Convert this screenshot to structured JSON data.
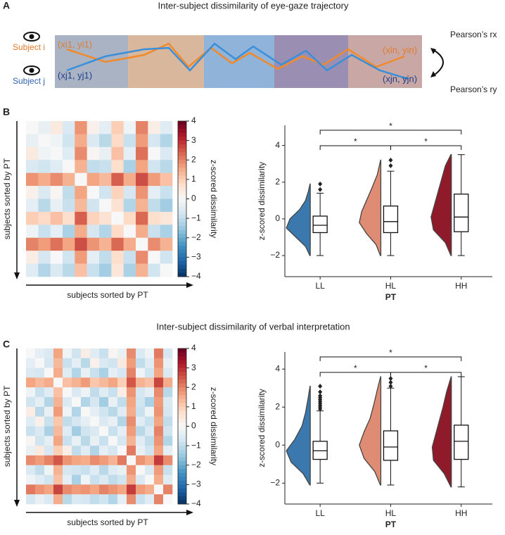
{
  "panels": [
    {
      "letter": "A",
      "title": "Inter-subject dissimilarity of eye-gaze trajectory"
    },
    {
      "letter": "B"
    },
    {
      "letter": "C",
      "title": "Inter-subject dissimilarity of verbal interpretation"
    }
  ],
  "panel_a": {
    "subject_i": "Subject i",
    "subject_j": "Subject j",
    "start_i": "(xi1, yi1)",
    "start_j": "(xj1, yj1)",
    "end_i": "(xin, yin)",
    "end_j": "(xjn, yjn)",
    "pearson_x": "Pearson’s rx",
    "pearson_y": "Pearson’s ry"
  },
  "chart_data": [
    {
      "type": "heatmap",
      "xlabel": "subjects sorted by PT",
      "ylabel": "subjects sorted by PT",
      "colorbar_label": "z-scored dissimilarity",
      "colormap": "RdBu_r",
      "clim": [
        -4,
        4
      ],
      "symmetric": true,
      "cticks": [
        4,
        3,
        2,
        1,
        0,
        {
          "value": -1,
          "label": "−1"
        },
        {
          "value": -2,
          "label": "−2"
        },
        {
          "value": -3,
          "label": "−3"
        },
        {
          "value": -4,
          "label": "−4"
        }
      ],
      "matrix": [
        [
          0.0,
          -0.3,
          0.4,
          -0.6,
          1.8,
          0.2,
          -0.4,
          1.0,
          -0.2,
          2.0,
          0.3,
          -0.5
        ],
        [
          0.0,
          -0.2,
          -0.8,
          1.5,
          -0.6,
          -1.1,
          0.8,
          -0.9,
          1.7,
          -0.7,
          -1.2
        ],
        [
          0.0,
          -0.5,
          1.9,
          0.1,
          -0.3,
          1.2,
          -0.4,
          2.2,
          0.0,
          -0.6
        ],
        [
          0.0,
          1.4,
          -1.0,
          -0.9,
          0.7,
          -1.3,
          1.6,
          -0.8,
          -1.1
        ],
        [
          0.0,
          1.6,
          1.3,
          2.4,
          1.5,
          2.6,
          1.7,
          1.2
        ],
        [
          0.0,
          -0.8,
          0.9,
          -0.7,
          1.8,
          -0.4,
          -0.9
        ],
        [
          0.0,
          0.6,
          -1.2,
          1.4,
          -1.0,
          -1.4
        ],
        [
          0.0,
          0.8,
          2.3,
          0.7,
          0.5
        ],
        [
          0.0,
          1.5,
          -0.9,
          -1.3
        ],
        [
          0.0,
          1.9,
          1.4
        ],
        [
          0.0,
          -0.8
        ],
        [
          0.0
        ]
      ]
    },
    {
      "type": "violin",
      "ylabel": "z-scored dissimilarity",
      "xlabel": "PT",
      "categories": [
        "LL",
        "HL",
        "HH"
      ],
      "colors": [
        "#3a78ae",
        "#df8c74",
        "#8f1b2a"
      ],
      "ylim": [
        -3.15,
        5.1
      ],
      "yticks": [
        {
          "value": -2,
          "label": "−2"
        },
        0,
        2,
        4
      ],
      "boxes": [
        {
          "whislo": -2.0,
          "q1": -0.75,
          "med": -0.35,
          "q3": 0.15,
          "whishi": 1.4,
          "fliers": [
            1.6,
            1.9
          ]
        },
        {
          "whislo": -2.0,
          "q1": -0.75,
          "med": -0.15,
          "q3": 0.7,
          "whishi": 2.6,
          "fliers": [
            2.9,
            3.2
          ]
        },
        {
          "whislo": -2.0,
          "q1": -0.7,
          "med": 0.1,
          "q3": 1.35,
          "whishi": 3.5,
          "fliers": []
        }
      ],
      "violins": [
        {
          "y": [
            -2.0,
            -1.5,
            -1.0,
            -0.5,
            0.0,
            0.5,
            1.0,
            1.5,
            1.9
          ],
          "density": [
            0.02,
            0.2,
            0.6,
            1.0,
            0.85,
            0.45,
            0.2,
            0.08,
            0.01
          ]
        },
        {
          "y": [
            -2.0,
            -1.4,
            -0.8,
            -0.2,
            0.4,
            1.0,
            1.6,
            2.4,
            3.2
          ],
          "density": [
            0.02,
            0.2,
            0.6,
            0.9,
            0.8,
            0.6,
            0.4,
            0.15,
            0.01
          ]
        },
        {
          "y": [
            -2.0,
            -1.3,
            -0.6,
            0.1,
            0.8,
            1.5,
            2.2,
            2.9,
            3.5
          ],
          "density": [
            0.02,
            0.25,
            0.75,
            0.85,
            0.7,
            0.55,
            0.4,
            0.25,
            0.02
          ]
        }
      ],
      "significance": [
        {
          "pair": [
            "LL",
            "HH"
          ],
          "label": "*"
        },
        {
          "pair": [
            "LL",
            "HL"
          ],
          "label": "*"
        },
        {
          "pair": [
            "HL",
            "HH"
          ],
          "label": "*"
        }
      ]
    },
    {
      "type": "heatmap",
      "xlabel": "subjects sorted by PT",
      "ylabel": "subjects sorted by PT",
      "colorbar_label": "z-scored dissimilarity",
      "colormap": "RdBu_r",
      "clim": [
        -4,
        4
      ],
      "symmetric": true,
      "cticks": [
        4,
        3,
        2,
        1,
        0,
        {
          "value": -1,
          "label": "−1"
        },
        {
          "value": -2,
          "label": "−2"
        },
        {
          "value": -3,
          "label": "−3"
        },
        {
          "value": -4,
          "label": "−4"
        }
      ],
      "matrix": [
        [
          0.0,
          -0.4,
          -0.6,
          1.6,
          -0.2,
          -0.8,
          0.3,
          -0.5,
          -0.9,
          0.1,
          -0.3,
          1.9,
          -0.6,
          -0.2,
          2.1,
          -0.7
        ],
        [
          0.0,
          -0.7,
          1.3,
          -0.9,
          -0.4,
          -1.1,
          0.2,
          -0.6,
          -0.8,
          0.4,
          1.7,
          -1.0,
          -0.5,
          1.8,
          -0.3
        ],
        [
          0.0,
          1.5,
          -0.5,
          -1.2,
          -0.3,
          -0.9,
          -1.3,
          -0.4,
          -0.7,
          2.0,
          -0.2,
          -0.8,
          1.6,
          -0.6
        ],
        [
          0.0,
          1.2,
          1.4,
          1.7,
          1.1,
          1.3,
          1.6,
          1.0,
          2.5,
          1.4,
          1.2,
          2.7,
          1.5
        ],
        [
          0.0,
          -0.6,
          -0.2,
          -1.0,
          -0.5,
          -0.9,
          0.3,
          1.8,
          -0.7,
          -0.4,
          1.9,
          -1.1
        ],
        [
          0.0,
          -1.2,
          -0.7,
          -1.4,
          -0.3,
          -1.0,
          1.6,
          -0.8,
          -1.3,
          1.7,
          -0.6
        ],
        [
          0.0,
          -0.4,
          -0.8,
          -1.1,
          -0.5,
          1.5,
          -0.9,
          -0.2,
          1.8,
          -0.7
        ],
        [
          0.0,
          -0.6,
          -0.3,
          -1.2,
          1.9,
          -0.5,
          -0.9,
          1.6,
          -1.0
        ],
        [
          0.0,
          -0.9,
          -0.4,
          1.7,
          -1.1,
          -0.6,
          2.0,
          -0.8
        ],
        [
          0.0,
          -0.7,
          1.4,
          -0.5,
          -1.0,
          1.8,
          -1.2
        ],
        [
          0.0,
          2.1,
          -0.3,
          -0.8,
          1.6,
          -0.4
        ],
        [
          0.0,
          1.8,
          1.5,
          2.8,
          1.9
        ],
        [
          0.0,
          -0.6,
          1.7,
          -0.9
        ],
        [
          0.0,
          1.5,
          -0.5
        ],
        [
          0.0,
          2.0
        ],
        [
          0.0
        ]
      ]
    },
    {
      "type": "violin",
      "ylabel": "z-scored dissimilarity",
      "xlabel": "PT",
      "categories": [
        "LL",
        "HL",
        "HH"
      ],
      "colors": [
        "#3a78ae",
        "#df8c74",
        "#8f1b2a"
      ],
      "ylim": [
        -3.1,
        4.9
      ],
      "yticks": [
        {
          "value": -2,
          "label": "−2"
        },
        0,
        2,
        4
      ],
      "boxes": [
        {
          "whislo": -2.0,
          "q1": -0.75,
          "med": -0.3,
          "q3": 0.2,
          "whishi": 1.8,
          "fliers": [
            1.9,
            2.0,
            2.1,
            2.2,
            2.3,
            2.4,
            2.5,
            2.6,
            2.8,
            3.1
          ]
        },
        {
          "whislo": -2.1,
          "q1": -0.8,
          "med": -0.1,
          "q3": 0.75,
          "whishi": 3.0,
          "fliers": [
            3.1,
            3.3,
            3.5
          ]
        },
        {
          "whislo": -2.2,
          "q1": -0.75,
          "med": 0.2,
          "q3": 1.05,
          "whishi": 3.6,
          "fliers": []
        }
      ],
      "violins": [
        {
          "y": [
            -2.1,
            -1.5,
            -0.9,
            -0.3,
            0.3,
            1.0,
            1.7,
            2.4,
            3.1
          ],
          "density": [
            0.02,
            0.3,
            0.8,
            1.0,
            0.65,
            0.35,
            0.2,
            0.1,
            0.01
          ]
        },
        {
          "y": [
            -2.1,
            -1.4,
            -0.7,
            0.0,
            0.7,
            1.4,
            2.1,
            2.9,
            3.6
          ],
          "density": [
            0.02,
            0.25,
            0.7,
            0.9,
            0.7,
            0.45,
            0.3,
            0.15,
            0.01
          ]
        },
        {
          "y": [
            -2.2,
            -1.5,
            -0.8,
            -0.1,
            0.6,
            1.3,
            2.0,
            2.8,
            3.6
          ],
          "density": [
            0.02,
            0.3,
            0.75,
            0.8,
            0.65,
            0.5,
            0.35,
            0.2,
            0.01
          ]
        }
      ],
      "significance": [
        {
          "pair": [
            "LL",
            "HH"
          ],
          "label": "*"
        },
        {
          "pair": [
            "LL",
            "HL"
          ],
          "label": "*"
        },
        {
          "pair": [
            "HL",
            "HH"
          ],
          "label": "*"
        }
      ]
    }
  ]
}
